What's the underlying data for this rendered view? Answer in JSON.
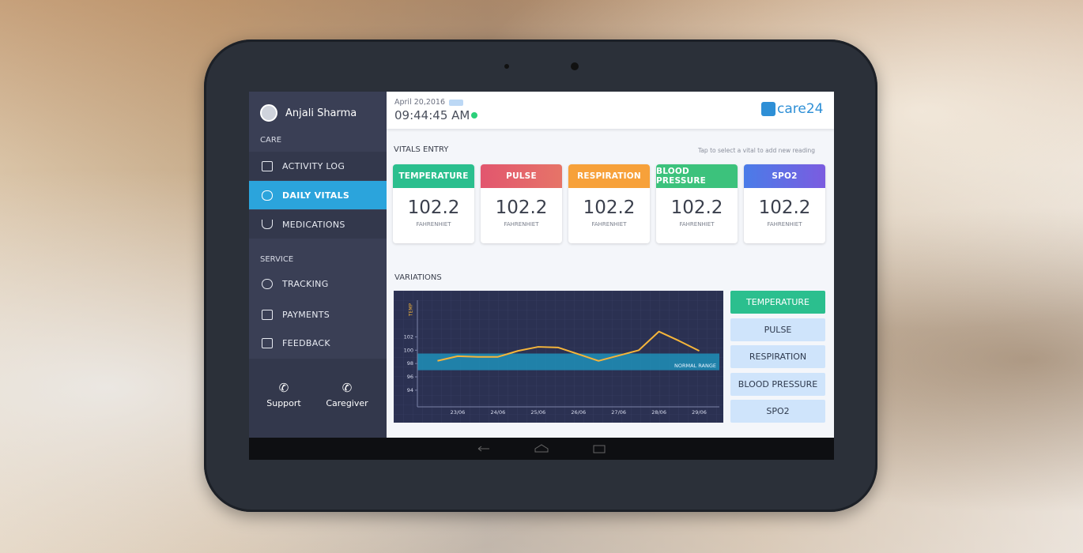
{
  "user": {
    "name": "Anjali Sharma"
  },
  "sidebar": {
    "sections": [
      {
        "title": "CARE",
        "items": [
          "ACTIVITY LOG",
          "DAILY VITALS",
          "MEDICATIONS"
        ]
      },
      {
        "title": "SERVICE",
        "items": [
          "TRACKING",
          "PAYMENTS",
          "FEEDBACK"
        ]
      }
    ],
    "actions": [
      "Support",
      "Caregiver"
    ]
  },
  "header": {
    "date": "April 20,2016",
    "time": "09:44:45 AM",
    "logo": "care24"
  },
  "vitals": {
    "title": "VITALS ENTRY",
    "hint": "Tap to select a vital to add new reading",
    "cards": [
      {
        "name": "TEMPERATURE",
        "value": 102.2,
        "unit": "FAHRENHIET"
      },
      {
        "name": "PULSE",
        "value": 102.2,
        "unit": "FAHRENHIET"
      },
      {
        "name": "RESPIRATION",
        "value": 102.2,
        "unit": "FAHRENHIET"
      },
      {
        "name": "BLOOD PRESSURE",
        "value": 102.2,
        "unit": "FAHRENHIET"
      },
      {
        "name": "SPO2",
        "value": 102.2,
        "unit": "FAHRENHIET"
      }
    ]
  },
  "variations": {
    "title": "VARIATIONS",
    "options": [
      "TEMPERATURE",
      "PULSE",
      "RESPIRATION",
      "BLOOD PRESSURE",
      "SPO2"
    ]
  },
  "chart_data": {
    "type": "line",
    "y_label": "TEMP",
    "categories": [
      null,
      "23/06",
      null,
      "24/06",
      null,
      "25/06",
      null,
      "26/06",
      null,
      "27/06",
      null,
      "28/06",
      null,
      "29/06"
    ],
    "values": [
      98.4,
      99.1,
      99.0,
      99.0,
      99.9,
      100.5,
      100.4,
      99.4,
      98.4,
      99.2,
      100.0,
      102.8,
      101.4,
      99.9
    ],
    "color": "#f5b53a",
    "band": [
      97,
      99.5
    ],
    "band_label": "NORMAL RANGE",
    "band_color": "#1f8fb8",
    "ylim": [
      91.5,
      107.5
    ],
    "yticks": [
      94,
      96,
      98,
      100,
      102
    ]
  }
}
